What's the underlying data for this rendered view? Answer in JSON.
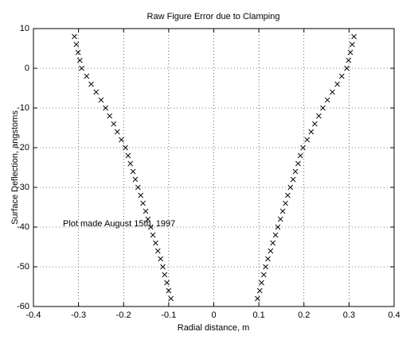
{
  "chart_data": {
    "type": "scatter",
    "title": "Raw Figure Error due to Clamping",
    "x_label": "Radial distance, m",
    "y_label": "Surface Deflection, angstoms",
    "annotation": "Plot made August 15th, 1997",
    "marker": "x",
    "color": "#000000",
    "grid": true,
    "xlim": [
      -0.4,
      0.4
    ],
    "xticks": [
      -0.4,
      -0.3,
      -0.2,
      -0.1,
      0,
      0.1,
      0.2,
      0.3,
      0.4
    ],
    "ylim": [
      -60,
      10
    ],
    "yticks": [
      -60,
      -50,
      -40,
      -30,
      -20,
      -10,
      0,
      10
    ],
    "x": [
      -0.309,
      -0.305,
      -0.301,
      -0.297,
      -0.293,
      -0.282,
      -0.272,
      -0.261,
      -0.25,
      -0.24,
      -0.231,
      -0.222,
      -0.214,
      -0.205,
      -0.196,
      -0.19,
      -0.185,
      -0.179,
      -0.174,
      -0.168,
      -0.162,
      -0.157,
      -0.151,
      -0.146,
      -0.14,
      -0.135,
      -0.129,
      -0.124,
      -0.118,
      -0.113,
      -0.109,
      -0.104,
      -0.1,
      -0.095,
      0.311,
      0.307,
      0.303,
      0.299,
      0.295,
      0.284,
      0.274,
      0.263,
      0.252,
      0.242,
      0.233,
      0.224,
      0.216,
      0.207,
      0.198,
      0.192,
      0.187,
      0.181,
      0.176,
      0.17,
      0.164,
      0.159,
      0.153,
      0.148,
      0.142,
      0.137,
      0.131,
      0.126,
      0.12,
      0.115,
      0.111,
      0.106,
      0.102,
      0.097
    ],
    "values": [
      8,
      6,
      4,
      2,
      0,
      -2,
      -4,
      -6,
      -8,
      -10,
      -12,
      -14,
      -16,
      -18,
      -20,
      -22,
      -24,
      -26,
      -28,
      -30,
      -32,
      -34,
      -36,
      -38,
      -40,
      -42,
      -44,
      -46,
      -48,
      -50,
      -52,
      -54,
      -56,
      -58,
      8,
      6,
      4,
      2,
      0,
      -2,
      -4,
      -6,
      -8,
      -10,
      -12,
      -14,
      -16,
      -18,
      -20,
      -22,
      -24,
      -26,
      -28,
      -30,
      -32,
      -34,
      -36,
      -38,
      -40,
      -42,
      -44,
      -46,
      -48,
      -50,
      -52,
      -54,
      -56,
      -58
    ]
  }
}
